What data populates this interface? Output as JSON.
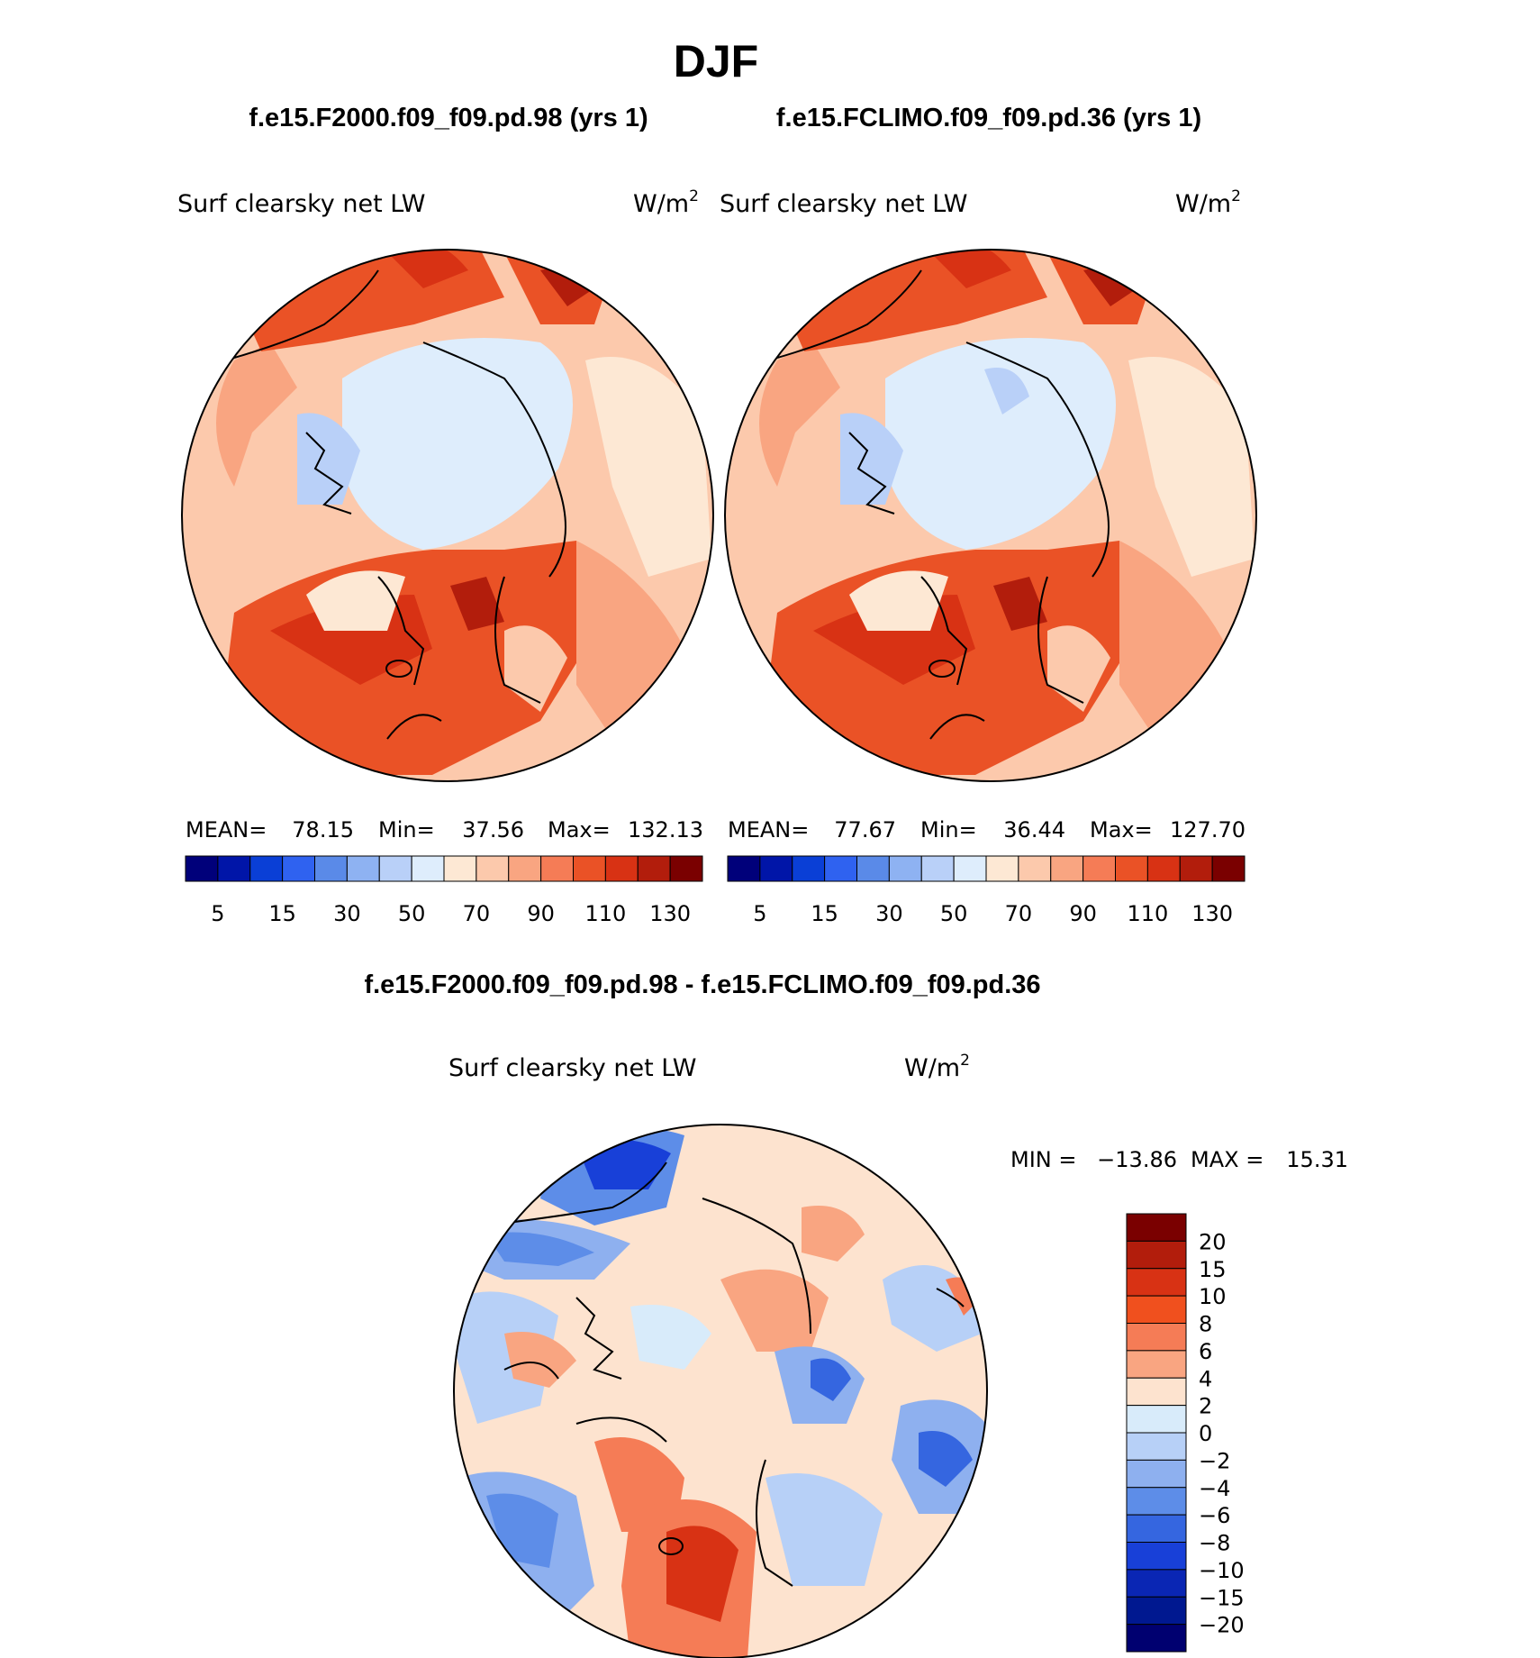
{
  "main_title": "DJF",
  "panels_title_left": "f.e15.F2000.f09_f09.pd.98 (yrs 1)",
  "panels_title_right": "f.e15.FCLIMO.f09_f09.pd.36 (yrs 1)",
  "diff_title": "f.e15.F2000.f09_f09.pd.98 - f.e15.FCLIMO.f09_f09.pd.36",
  "chart_data": [
    {
      "type": "heatmap",
      "projection": "north polar stereographic",
      "variable": "Surf clearsky net LW",
      "units": "W/m",
      "units_sup": "2",
      "stats": {
        "mean_label": "MEAN=",
        "mean": "78.15",
        "min_label": "Min=",
        "min": "37.56",
        "max_label": "Max=",
        "max": "132.13"
      },
      "colorbar": {
        "levels": [
          "5",
          "15",
          "30",
          "50",
          "70",
          "90",
          "110",
          "130"
        ],
        "colors": [
          "#00007a",
          "#0015a8",
          "#0a3fd6",
          "#2f62f0",
          "#5a8ae8",
          "#8eb2f2",
          "#b9d0f8",
          "#deedfc",
          "#fde8d4",
          "#fcc9ac",
          "#f9a581",
          "#f57c56",
          "#ea5226",
          "#d83214",
          "#b21d0c",
          "#7a0000"
        ]
      }
    },
    {
      "type": "heatmap",
      "projection": "north polar stereographic",
      "variable": "Surf clearsky net LW",
      "units": "W/m",
      "units_sup": "2",
      "stats": {
        "mean_label": "MEAN=",
        "mean": "77.67",
        "min_label": "Min=",
        "min": "36.44",
        "max_label": "Max=",
        "max": "127.70"
      },
      "colorbar": {
        "levels": [
          "5",
          "15",
          "30",
          "50",
          "70",
          "90",
          "110",
          "130"
        ],
        "colors": [
          "#00007a",
          "#0015a8",
          "#0a3fd6",
          "#2f62f0",
          "#5a8ae8",
          "#8eb2f2",
          "#b9d0f8",
          "#deedfc",
          "#fde8d4",
          "#fcc9ac",
          "#f9a581",
          "#f57c56",
          "#ea5226",
          "#d83214",
          "#b21d0c",
          "#7a0000"
        ]
      }
    },
    {
      "type": "heatmap",
      "projection": "north polar stereographic",
      "variable": "Surf clearsky net LW",
      "units": "W/m",
      "units_sup": "2",
      "stats": {
        "min_label": "MIN =",
        "min": "−13.86",
        "max_label": "MAX =",
        "max": "15.31"
      },
      "colorbar": {
        "levels": [
          "20",
          "15",
          "10",
          "8",
          "6",
          "4",
          "2",
          "0",
          "−2",
          "−4",
          "−6",
          "−8",
          "−10",
          "−15",
          "−20"
        ],
        "colors": [
          "#7a0000",
          "#b21d0c",
          "#d83214",
          "#f0501e",
          "#f57c56",
          "#f9a581",
          "#fde3cf",
          "#d8ebfa",
          "#b7d0f7",
          "#8eb0ef",
          "#5d8de8",
          "#3566e0",
          "#1840d8",
          "#0a26b4",
          "#001890",
          "#000070"
        ]
      }
    }
  ]
}
